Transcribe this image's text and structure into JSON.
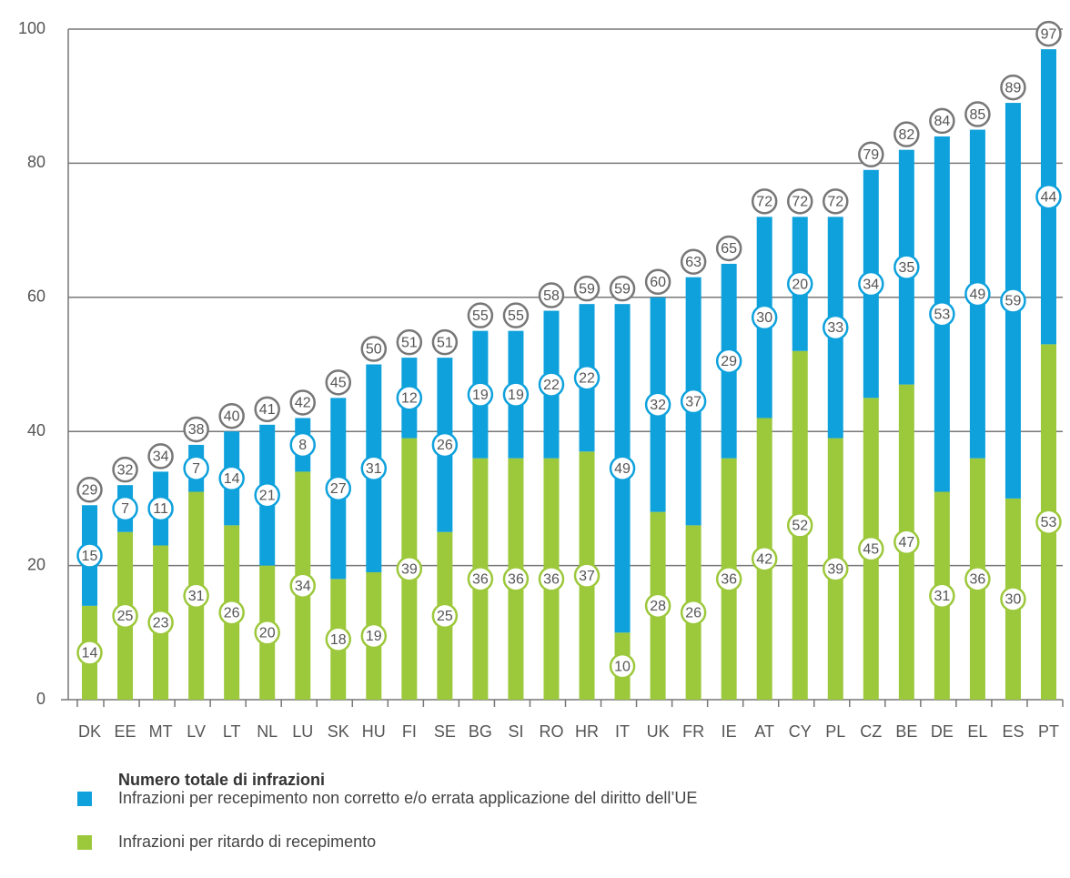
{
  "chart_data": {
    "type": "stacked-bar",
    "categories": [
      "DK",
      "EE",
      "MT",
      "LV",
      "LT",
      "NL",
      "LU",
      "SK",
      "HU",
      "FI",
      "SE",
      "BG",
      "SI",
      "RO",
      "HR",
      "IT",
      "UK",
      "FR",
      "IE",
      "AT",
      "CY",
      "PL",
      "CZ",
      "BE",
      "DE",
      "EL",
      "ES",
      "PT"
    ],
    "series": [
      {
        "name": "Infrazioni per ritardo di recepimento",
        "color": "#9cc83b",
        "values": [
          14,
          25,
          23,
          31,
          26,
          20,
          34,
          18,
          19,
          39,
          25,
          36,
          36,
          36,
          37,
          10,
          28,
          26,
          36,
          42,
          52,
          39,
          45,
          47,
          31,
          36,
          30,
          53
        ]
      },
      {
        "name": "Infrazioni per recepimento non corretto e/o errata applicazione del diritto dell’UE",
        "color": "#0ea1dc",
        "values": [
          15,
          7,
          11,
          7,
          14,
          21,
          8,
          27,
          31,
          12,
          26,
          19,
          19,
          22,
          22,
          49,
          32,
          37,
          29,
          30,
          20,
          33,
          34,
          35,
          53,
          49,
          59,
          44
        ]
      }
    ],
    "totals_title": "Numero totale di infrazioni",
    "totals": [
      29,
      32,
      34,
      38,
      40,
      41,
      42,
      45,
      50,
      51,
      51,
      55,
      55,
      58,
      59,
      59,
      60,
      63,
      65,
      72,
      72,
      72,
      79,
      82,
      84,
      85,
      89,
      97
    ],
    "ylim": [
      0,
      100
    ],
    "yticks": [
      0,
      20,
      40,
      60,
      80,
      100
    ],
    "grid": true
  }
}
